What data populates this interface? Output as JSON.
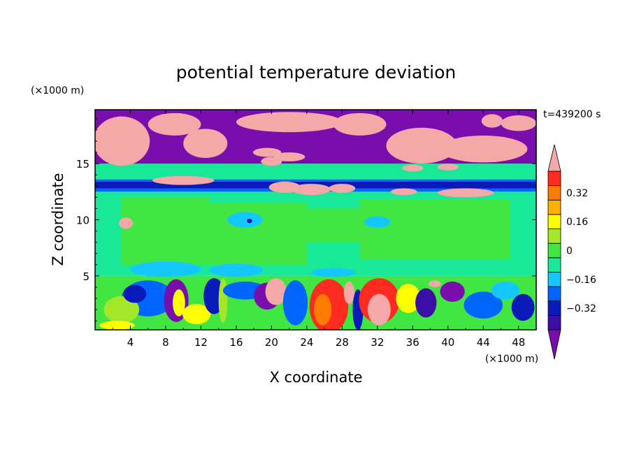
{
  "chart_data": {
    "type": "heatmap",
    "title": "potential temperature deviation",
    "time_label": "t=439200 s",
    "xlabel": "X coordinate",
    "ylabel": "Z coordinate",
    "x_unit": "(×1000 m)",
    "y_unit": "(×1000 m)",
    "xlim": [
      0,
      50
    ],
    "ylim": [
      0.2,
      19.8
    ],
    "xticks": [
      4,
      8,
      12,
      16,
      20,
      24,
      28,
      32,
      36,
      40,
      44,
      48
    ],
    "yticks": [
      5,
      10,
      15
    ],
    "colorbar": {
      "levels": [
        -0.48,
        -0.4,
        -0.32,
        -0.24,
        -0.16,
        -0.08,
        0,
        0.08,
        0.16,
        0.24,
        0.32,
        0.4,
        0.48
      ],
      "colors": [
        "#7a0eac",
        "#3b0fa6",
        "#0a1ab8",
        "#0066ff",
        "#14c8ff",
        "#18e898",
        "#42e642",
        "#a6e62a",
        "#ffff00",
        "#ffb000",
        "#ff7a00",
        "#ff2a20",
        "#f4a8a8"
      ],
      "labeled_levels": [
        -0.32,
        -0.16,
        0,
        0.16,
        0.32
      ],
      "tick_labels": [
        "−0.32",
        "−0.16",
        "0",
        "0.16",
        "0.32"
      ],
      "extend": "both"
    },
    "regions": [
      {
        "desc": "upper layer",
        "z": [
          15,
          19.8
        ],
        "mix": [
          "#7a0eac",
          "#f4a8a8"
        ]
      },
      {
        "desc": "mid green band",
        "z": [
          13.5,
          15
        ],
        "dominant_level": -0.08
      },
      {
        "desc": "dark blue stripe",
        "z": [
          12.8,
          13.4
        ],
        "dominant_level": -0.32
      },
      {
        "desc": "middle layer",
        "z": [
          5,
          12.5
        ],
        "dominant_level": 0
      },
      {
        "desc": "lower turbulent layer",
        "z": [
          0.2,
          4.8
        ],
        "range": [
          -0.48,
          0.48
        ]
      }
    ]
  }
}
